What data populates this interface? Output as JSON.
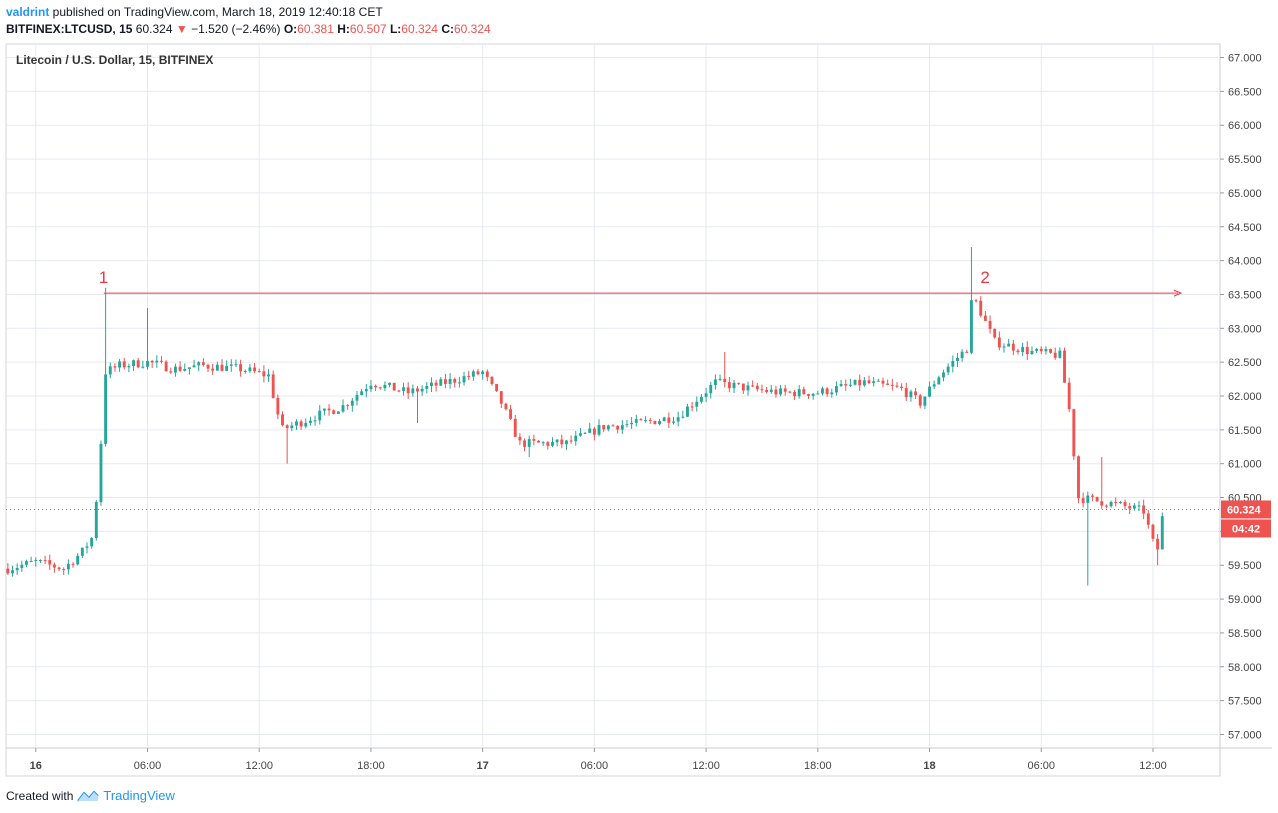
{
  "header": {
    "author": "valdrint",
    "published_text": " published on TradingView.com, March 18, 2019 12:40:18 CET",
    "symbol": "BITFINEX:LTCUSD, 15",
    "last": "60.324",
    "change_arrow": "▼",
    "change": "−1.520 (−2.46%)",
    "o_label": "O:",
    "o_val": "60.381",
    "h_label": "H:",
    "h_val": "60.507",
    "l_label": "L:",
    "l_val": "60.324",
    "c_label": "C:",
    "c_val": "60.324"
  },
  "footer": {
    "created_with": "Created with",
    "brand": "TradingView"
  },
  "colors": {
    "up": "#26a69a",
    "down": "#ef5350",
    "grid": "#e6eaf0",
    "annotation": "#f23645"
  },
  "chart_data": {
    "type": "candlestick",
    "title": "Litecoin / U.S. Dollar, 15, BITFINEX",
    "ylim": [
      56.8,
      67.2
    ],
    "y_ticks": [
      "67.000",
      "66.500",
      "66.000",
      "65.500",
      "65.000",
      "64.500",
      "64.000",
      "63.500",
      "63.000",
      "62.500",
      "62.000",
      "61.500",
      "61.000",
      "60.500",
      "60.000",
      "59.500",
      "59.000",
      "58.500",
      "58.000",
      "57.500",
      "57.000"
    ],
    "x_ticks": [
      "16",
      "06:00",
      "12:00",
      "18:00",
      "17",
      "06:00",
      "12:00",
      "18:00",
      "18",
      "06:00",
      "12:00"
    ],
    "x_tick_hours": [
      0,
      6,
      12,
      18,
      24,
      30,
      36,
      42,
      48,
      54,
      60
    ],
    "x_range_hours": [
      -1.6,
      63.6
    ],
    "last_price_label": "60.324",
    "countdown_label": "04:42",
    "resistance_level": 63.52,
    "annotations": [
      {
        "label": "1",
        "hour": 3.65,
        "price": 63.52
      },
      {
        "label": "2",
        "hour": 50.3,
        "price": 63.52
      }
    ],
    "anchors": [
      [
        -1.5,
        59.45
      ],
      [
        0,
        59.55
      ],
      [
        1.5,
        59.45
      ],
      [
        2.5,
        59.7
      ],
      [
        3.0,
        59.9
      ],
      [
        3.4,
        60.8
      ],
      [
        3.7,
        62.35
      ],
      [
        4.5,
        62.45
      ],
      [
        6.0,
        62.5
      ],
      [
        7.5,
        62.4
      ],
      [
        9.0,
        62.45
      ],
      [
        11.0,
        62.4
      ],
      [
        12.5,
        62.3
      ],
      [
        13.2,
        61.5
      ],
      [
        15.0,
        61.7
      ],
      [
        16.5,
        61.85
      ],
      [
        18.0,
        62.2
      ],
      [
        20.0,
        62.05
      ],
      [
        22.0,
        62.2
      ],
      [
        24.0,
        62.35
      ],
      [
        25.0,
        61.9
      ],
      [
        26.0,
        61.3
      ],
      [
        28.5,
        61.3
      ],
      [
        30.5,
        61.55
      ],
      [
        32.5,
        61.6
      ],
      [
        34.5,
        61.7
      ],
      [
        36.5,
        62.2
      ],
      [
        38.5,
        62.1
      ],
      [
        40.0,
        62.05
      ],
      [
        42.0,
        62.05
      ],
      [
        44.5,
        62.2
      ],
      [
        46.5,
        62.1
      ],
      [
        47.5,
        61.9
      ],
      [
        48.5,
        62.3
      ],
      [
        50.0,
        62.7
      ],
      [
        50.3,
        63.5
      ],
      [
        51.5,
        62.8
      ],
      [
        53.5,
        62.65
      ],
      [
        55.0,
        62.6
      ],
      [
        55.5,
        61.8
      ],
      [
        56.0,
        60.5
      ],
      [
        58.0,
        60.4
      ],
      [
        59.5,
        60.3
      ],
      [
        60.2,
        59.65
      ],
      [
        60.6,
        60.38
      ]
    ],
    "wick_events": [
      {
        "hour": 3.7,
        "high": 63.6
      },
      {
        "hour": 6.0,
        "high": 63.3
      },
      {
        "hour": 13.5,
        "low": 61.0
      },
      {
        "hour": 20.5,
        "low": 61.6
      },
      {
        "hour": 26.5,
        "low": 61.1
      },
      {
        "hour": 37.0,
        "high": 62.65
      },
      {
        "hour": 50.3,
        "high": 64.2
      },
      {
        "hour": 56.5,
        "low": 59.2
      },
      {
        "hour": 57.3,
        "high": 61.1
      },
      {
        "hour": 60.2,
        "low": 59.5
      }
    ]
  }
}
